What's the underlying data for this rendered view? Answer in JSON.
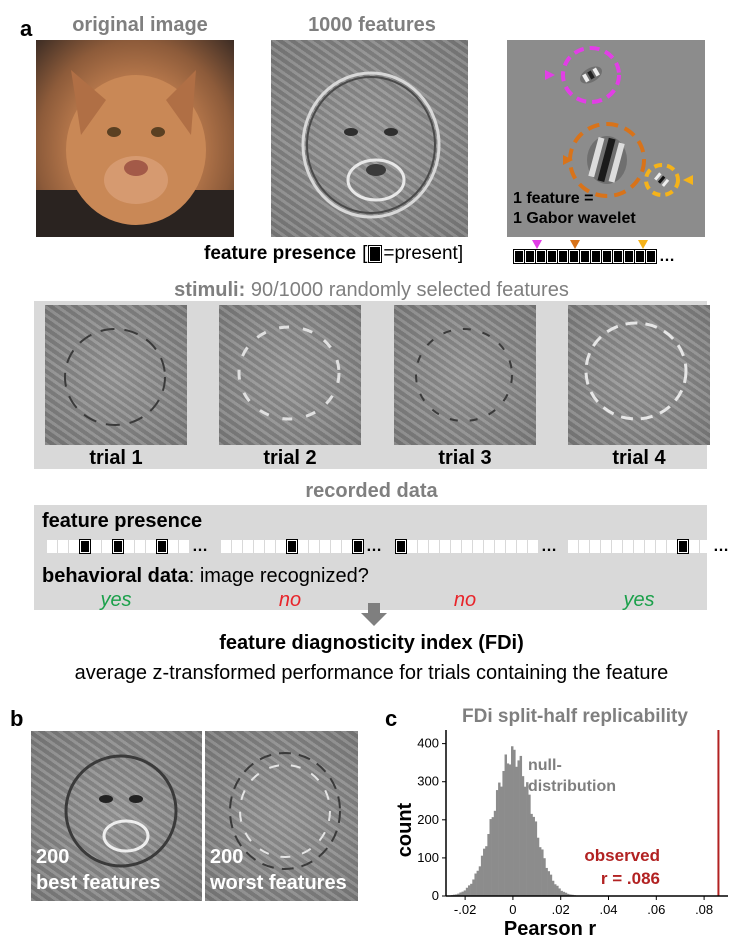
{
  "panel_a": {
    "label": "a",
    "original_title": "original image",
    "features_title": "1000 features",
    "gabor_caption_line1": "1 feature =",
    "gabor_caption_line2": "1 Gabor wavelet",
    "presence_label_bold": "feature presence",
    "presence_label_bracket_open": "[",
    "presence_label_eq": "=present]",
    "presence_dots": "…",
    "stimuli_bold": "stimuli:",
    "stimuli_text": "90/1000 randomly selected features",
    "trials": [
      "trial 1",
      "trial 2",
      "trial 3",
      "trial 4"
    ],
    "recorded_title": "recorded data",
    "rec_presence_label": "feature presence",
    "behavioral_bold": "behavioral data",
    "behavioral_text": ": image recognized?",
    "answers": [
      "yes",
      "no",
      "no",
      "yes"
    ],
    "fdi_title": "feature diagnosticity index (FDi)",
    "fdi_desc": "average z-transformed performance for trials containing the feature",
    "colors": {
      "yes": "#1aa04a",
      "no": "#e8242a",
      "magenta": "#e23ee6",
      "orange": "#d8731a",
      "gold": "#f5b31a",
      "observed": "#b22222"
    }
  },
  "panel_b": {
    "label": "b",
    "left_num": "200",
    "left_text": "best features",
    "right_num": "200",
    "right_text": "worst features"
  },
  "panel_c": {
    "label": "c",
    "title": "FDi split-half replicability",
    "null_label_1": "null-",
    "null_label_2": "distribution",
    "observed_1": "observed",
    "observed_2": "r = .086",
    "chart_data": {
      "type": "histogram",
      "title": "FDi split-half replicability",
      "xlabel": "Pearson r",
      "ylabel": "count",
      "xlim": [
        -0.028,
        0.09
      ],
      "ylim": [
        0,
        420
      ],
      "x_ticks": [
        -0.02,
        0,
        0.02,
        0.04,
        0.06,
        0.08
      ],
      "x_tick_labels": [
        "-.02",
        "0",
        ".02",
        ".04",
        ".06",
        ".08"
      ],
      "y_ticks": [
        0,
        100,
        200,
        300,
        400
      ],
      "y_tick_labels": [
        "0",
        "100",
        "200",
        "300",
        "400"
      ],
      "null_distribution": {
        "mean": 0.0,
        "sd": 0.008,
        "peak_count": 400
      },
      "observed_r": 0.086
    }
  },
  "presence_top_cells": [
    1,
    1,
    1,
    1,
    1,
    1,
    1,
    1,
    1,
    1,
    1,
    1,
    1
  ],
  "rec_bars": [
    [
      0,
      0,
      0,
      1,
      0,
      0,
      1,
      0,
      0,
      0,
      1,
      0,
      0
    ],
    [
      0,
      0,
      0,
      0,
      0,
      0,
      1,
      0,
      0,
      0,
      0,
      0,
      1
    ],
    [
      1,
      0,
      0,
      0,
      0,
      0,
      0,
      0,
      0,
      0,
      0,
      0,
      0
    ],
    [
      0,
      0,
      0,
      0,
      0,
      0,
      0,
      0,
      0,
      0,
      1,
      0,
      0
    ]
  ]
}
